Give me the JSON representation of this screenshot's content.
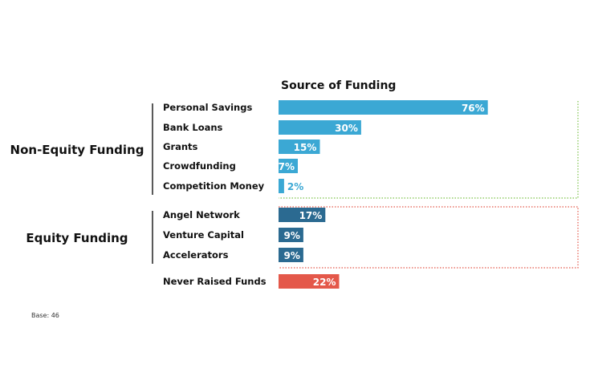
{
  "chart_data": {
    "type": "bar",
    "orientation": "horizontal",
    "title": "Source of Funding",
    "unit": "%",
    "xlim": [
      0,
      100
    ],
    "grid": false,
    "legend": "none",
    "groups": [
      {
        "name": "Non-Equity Funding",
        "color": "#3ba8d4",
        "border_color": "#7dc24b",
        "categories": [
          "Personal Savings",
          "Bank Loans",
          "Grants",
          "Crowdfunding",
          "Competition Money"
        ],
        "values": [
          76,
          30,
          15,
          7,
          2
        ],
        "labels": [
          "76%",
          "30%",
          "15%",
          "7%",
          "2%"
        ]
      },
      {
        "name": "Equity Funding",
        "color": "#2b6a91",
        "border_color": "#e4584a",
        "categories": [
          "Angel Network",
          "Venture Capital",
          "Accelerators"
        ],
        "values": [
          17,
          9,
          9
        ],
        "labels": [
          "17%",
          "9%",
          "9%"
        ]
      },
      {
        "name": "",
        "color": "#e4584a",
        "categories": [
          "Never Raised Funds"
        ],
        "values": [
          22
        ],
        "labels": [
          "22%"
        ]
      }
    ],
    "footnote": "Base: 46"
  }
}
